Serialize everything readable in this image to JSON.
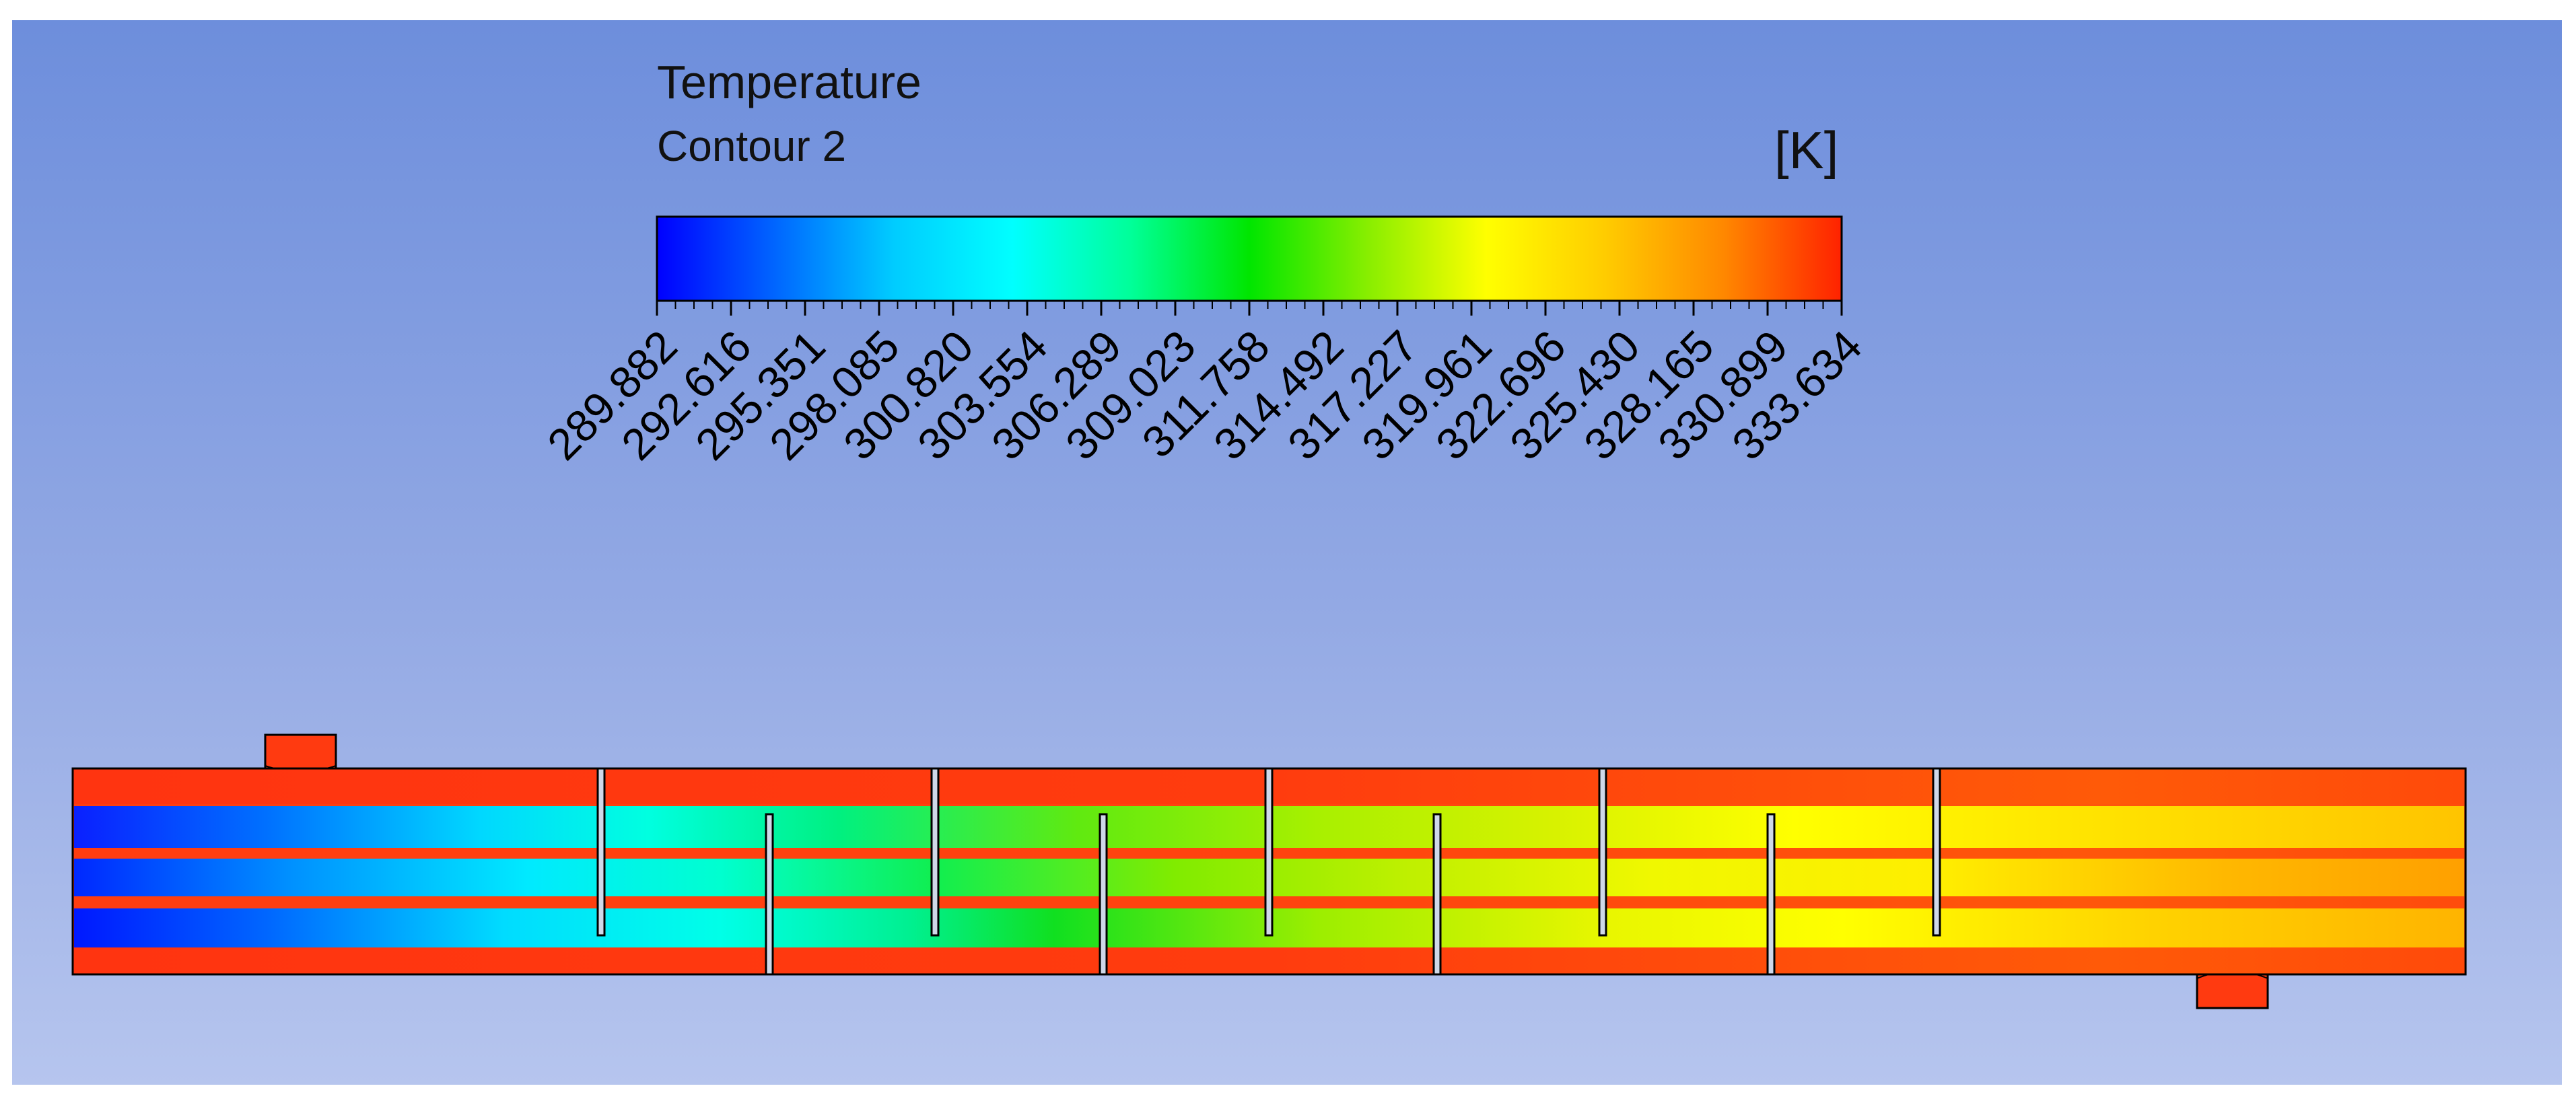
{
  "legend": {
    "title": "Temperature",
    "subtitle": "Contour 2",
    "unit": "[K]",
    "ticks": [
      "289.882",
      "292.616",
      "295.351",
      "298.085",
      "300.820",
      "303.554",
      "306.289",
      "309.023",
      "311.758",
      "314.492",
      "317.227",
      "319.961",
      "322.696",
      "325.430",
      "328.165",
      "330.899",
      "333.634"
    ],
    "colors": [
      "#0000ff",
      "#0066ff",
      "#00ccff",
      "#00ffff",
      "#00ff99",
      "#00e600",
      "#88ee00",
      "#ffff00",
      "#ffcc00",
      "#ff8800",
      "#ff2200"
    ]
  },
  "colors": {
    "background_top": "#6d8edc",
    "background_bottom": "#b6c5ee",
    "hot": "#ff3a10",
    "cold": "#0018ff"
  }
}
